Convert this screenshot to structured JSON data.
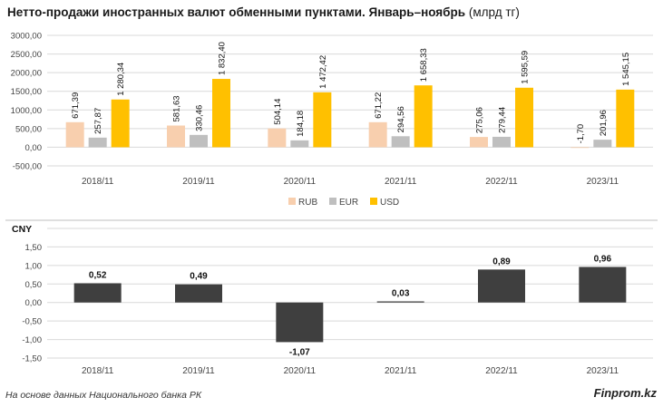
{
  "title": {
    "main": "Нетто-продажи иностранных валют обменными пунктами. Январь–ноябрь",
    "unit": "(млрд тг)"
  },
  "footer": {
    "source": "На основе данных Национального банка РК",
    "brand": "Finprom.kz"
  },
  "colors": {
    "rub": "#f8cfae",
    "eur": "#bfbfbf",
    "usd": "#ffc000",
    "cny": "#3f3f3f",
    "grid": "#d9d9d9"
  },
  "chart_data": [
    {
      "type": "bar",
      "categories": [
        "2018/11",
        "2019/11",
        "2020/11",
        "2021/11",
        "2022/11",
        "2023/11"
      ],
      "series": [
        {
          "name": "RUB",
          "values": [
            671.39,
            581.63,
            504.14,
            671.22,
            275.06,
            -1.7
          ],
          "labels": [
            "671,39",
            "581,63",
            "504,14",
            "671,22",
            "275,06",
            "-1,70"
          ]
        },
        {
          "name": "EUR",
          "values": [
            257.87,
            330.46,
            184.18,
            294.56,
            279.44,
            201.96
          ],
          "labels": [
            "257,87",
            "330,46",
            "184,18",
            "294,56",
            "279,44",
            "201,96"
          ]
        },
        {
          "name": "USD",
          "values": [
            1280.34,
            1832.4,
            1472.42,
            1658.33,
            1595.59,
            1545.15
          ],
          "labels": [
            "1 280,34",
            "1 832,40",
            "1 472,42",
            "1 658,33",
            "1 595,59",
            "1 545,15"
          ]
        }
      ],
      "ylim": [
        -500,
        3000
      ],
      "yticks": [
        -500,
        0,
        500,
        1000,
        1500,
        2000,
        2500,
        3000
      ],
      "ytick_labels": [
        "-500,00",
        "0,00",
        "500,00",
        "1000,00",
        "1500,00",
        "2000,00",
        "2500,00",
        "3000,00"
      ],
      "legend": "bottom",
      "grid": true
    },
    {
      "type": "bar",
      "title": "CNY",
      "categories": [
        "2018/11",
        "2019/11",
        "2020/11",
        "2021/11",
        "2022/11",
        "2023/11"
      ],
      "series": [
        {
          "name": "CNY",
          "values": [
            0.52,
            0.49,
            -1.07,
            0.03,
            0.89,
            0.96
          ],
          "labels": [
            "0,52",
            "0,49",
            "-1,07",
            "0,03",
            "0,89",
            "0,96"
          ]
        }
      ],
      "ylim": [
        -1.5,
        2.0
      ],
      "yticks": [
        -1.5,
        -1.0,
        -0.5,
        0,
        0.5,
        1.0,
        1.5,
        2.0
      ],
      "ytick_labels": [
        "-1,50",
        "-1,00",
        "-0,50",
        "0,00",
        "0,50",
        "1,00",
        "1,50",
        "2,00"
      ],
      "grid": true
    }
  ]
}
